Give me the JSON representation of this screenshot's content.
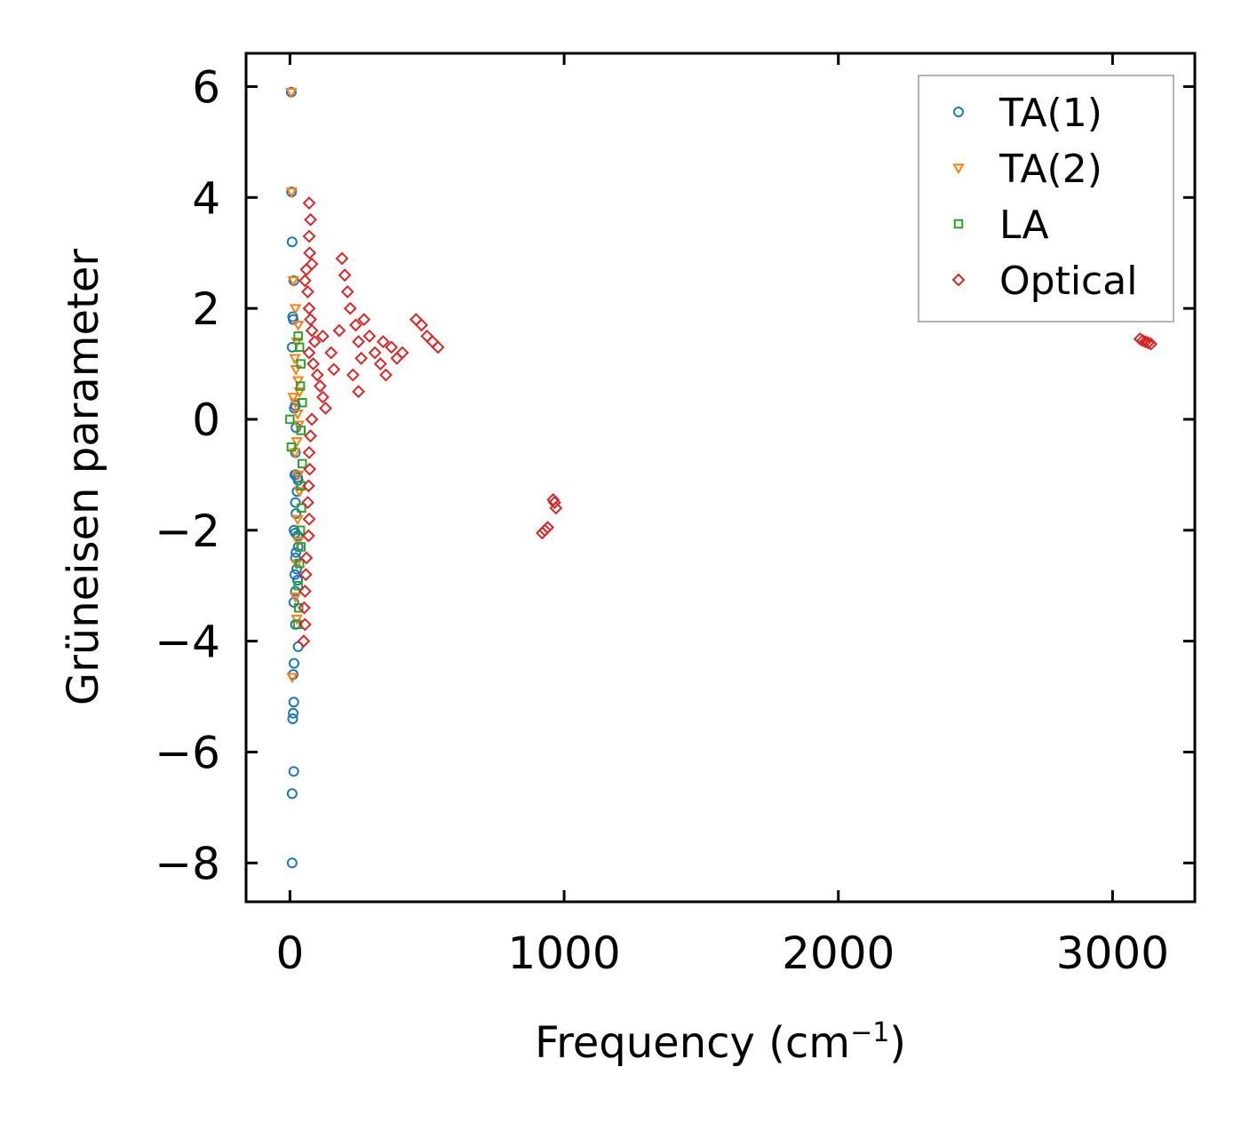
{
  "chart_data": {
    "type": "scatter",
    "title": "",
    "xlabel": "Frequency (cm",
    "xlabel_sup": "−1",
    "xlabel_close": ")",
    "ylabel": "Grüneisen parameter",
    "xlim": [
      -160,
      3300
    ],
    "ylim": [
      -8.7,
      6.6
    ],
    "xticks": [
      0,
      1000,
      2000,
      3000
    ],
    "xtick_labels": [
      "0",
      "1000",
      "2000",
      "3000"
    ],
    "yticks": [
      6,
      4,
      2,
      0,
      -2,
      -4,
      -6,
      -8
    ],
    "ytick_labels": [
      "6",
      "4",
      "2",
      "0",
      "−2",
      "−4",
      "−6",
      "−8"
    ],
    "grid": false,
    "legend_position": "top-right",
    "series": [
      {
        "name": "TA(1)",
        "marker": "circle",
        "color": "#1f77b4",
        "points": [
          [
            5,
            5.9
          ],
          [
            6,
            4.1
          ],
          [
            8,
            3.2
          ],
          [
            14,
            2.5
          ],
          [
            10,
            1.85
          ],
          [
            12,
            1.8
          ],
          [
            8,
            1.3
          ],
          [
            16,
            0.2
          ],
          [
            20,
            0.25
          ],
          [
            22,
            -0.15
          ],
          [
            20,
            -0.6
          ],
          [
            18,
            -1.0
          ],
          [
            22,
            -1.0
          ],
          [
            28,
            -1.05
          ],
          [
            30,
            -1.1
          ],
          [
            26,
            -1.3
          ],
          [
            20,
            -1.5
          ],
          [
            22,
            -1.7
          ],
          [
            15,
            -2.0
          ],
          [
            20,
            -2.05
          ],
          [
            28,
            -2.1
          ],
          [
            30,
            -2.3
          ],
          [
            22,
            -2.4
          ],
          [
            20,
            -2.5
          ],
          [
            25,
            -2.7
          ],
          [
            18,
            -2.8
          ],
          [
            28,
            -2.9
          ],
          [
            20,
            -3.1
          ],
          [
            14,
            -3.3
          ],
          [
            20,
            -3.7
          ],
          [
            30,
            -4.1
          ],
          [
            15,
            -4.4
          ],
          [
            12,
            -4.6
          ],
          [
            14,
            -5.1
          ],
          [
            12,
            -5.3
          ],
          [
            10,
            -5.4
          ],
          [
            14,
            -6.35
          ],
          [
            8,
            -6.75
          ],
          [
            8,
            -8.0
          ]
        ]
      },
      {
        "name": "TA(2)",
        "marker": "triangle-down",
        "color": "#ff7f0e",
        "points": [
          [
            5,
            5.9
          ],
          [
            6,
            4.1
          ],
          [
            12,
            2.5
          ],
          [
            20,
            2.0
          ],
          [
            30,
            1.7
          ],
          [
            25,
            1.4
          ],
          [
            18,
            1.1
          ],
          [
            22,
            0.9
          ],
          [
            30,
            0.7
          ],
          [
            35,
            0.5
          ],
          [
            12,
            0.4
          ],
          [
            20,
            0.3
          ],
          [
            28,
            0.1
          ],
          [
            32,
            -0.1
          ],
          [
            25,
            -0.4
          ],
          [
            18,
            -0.6
          ],
          [
            30,
            -1.0
          ],
          [
            35,
            -1.3
          ],
          [
            28,
            -1.8
          ],
          [
            30,
            -2.2
          ],
          [
            25,
            -2.6
          ],
          [
            20,
            -3.2
          ],
          [
            25,
            -3.6
          ],
          [
            8,
            -4.65
          ]
        ]
      },
      {
        "name": "LA",
        "marker": "square",
        "color": "#2ca02c",
        "points": [
          [
            0,
            0.0
          ],
          [
            5,
            -0.5
          ],
          [
            30,
            1.5
          ],
          [
            35,
            1.3
          ],
          [
            40,
            1.0
          ],
          [
            38,
            0.6
          ],
          [
            45,
            0.3
          ],
          [
            40,
            -0.2
          ],
          [
            45,
            -0.8
          ],
          [
            40,
            -1.2
          ],
          [
            42,
            -1.6
          ],
          [
            38,
            -2.0
          ],
          [
            40,
            -2.3
          ],
          [
            35,
            -2.6
          ],
          [
            30,
            -3.0
          ],
          [
            32,
            -3.4
          ],
          [
            28,
            -3.7
          ]
        ]
      },
      {
        "name": "Optical",
        "marker": "diamond",
        "color": "#d62728",
        "points": [
          [
            70,
            3.9
          ],
          [
            75,
            3.6
          ],
          [
            70,
            3.3
          ],
          [
            72,
            3.0
          ],
          [
            80,
            2.8
          ],
          [
            60,
            2.7
          ],
          [
            55,
            2.5
          ],
          [
            65,
            2.3
          ],
          [
            70,
            2.0
          ],
          [
            75,
            1.8
          ],
          [
            80,
            1.6
          ],
          [
            90,
            1.4
          ],
          [
            70,
            1.2
          ],
          [
            85,
            1.0
          ],
          [
            100,
            0.8
          ],
          [
            110,
            0.6
          ],
          [
            120,
            0.4
          ],
          [
            130,
            0.2
          ],
          [
            80,
            0.0
          ],
          [
            75,
            -0.3
          ],
          [
            70,
            -0.6
          ],
          [
            72,
            -0.9
          ],
          [
            68,
            -1.2
          ],
          [
            65,
            -1.5
          ],
          [
            70,
            -1.8
          ],
          [
            68,
            -2.1
          ],
          [
            60,
            -2.5
          ],
          [
            58,
            -2.8
          ],
          [
            55,
            -3.1
          ],
          [
            52,
            -3.4
          ],
          [
            55,
            -3.7
          ],
          [
            50,
            -4.0
          ],
          [
            120,
            1.5
          ],
          [
            150,
            1.2
          ],
          [
            160,
            0.9
          ],
          [
            180,
            1.6
          ],
          [
            190,
            2.9
          ],
          [
            200,
            2.6
          ],
          [
            210,
            2.3
          ],
          [
            220,
            2.0
          ],
          [
            240,
            1.7
          ],
          [
            250,
            1.4
          ],
          [
            260,
            1.1
          ],
          [
            230,
            0.8
          ],
          [
            250,
            0.5
          ],
          [
            270,
            1.8
          ],
          [
            290,
            1.5
          ],
          [
            310,
            1.2
          ],
          [
            330,
            1.0
          ],
          [
            350,
            0.8
          ],
          [
            370,
            1.3
          ],
          [
            390,
            1.1
          ],
          [
            410,
            1.2
          ],
          [
            340,
            1.4
          ],
          [
            460,
            1.8
          ],
          [
            480,
            1.7
          ],
          [
            500,
            1.5
          ],
          [
            520,
            1.4
          ],
          [
            540,
            1.3
          ],
          [
            920,
            -2.05
          ],
          [
            930,
            -2.0
          ],
          [
            940,
            -1.95
          ],
          [
            960,
            -1.45
          ],
          [
            965,
            -1.5
          ],
          [
            970,
            -1.6
          ],
          [
            3100,
            1.45
          ],
          [
            3110,
            1.42
          ],
          [
            3120,
            1.4
          ],
          [
            3130,
            1.38
          ],
          [
            3140,
            1.36
          ]
        ]
      }
    ]
  }
}
